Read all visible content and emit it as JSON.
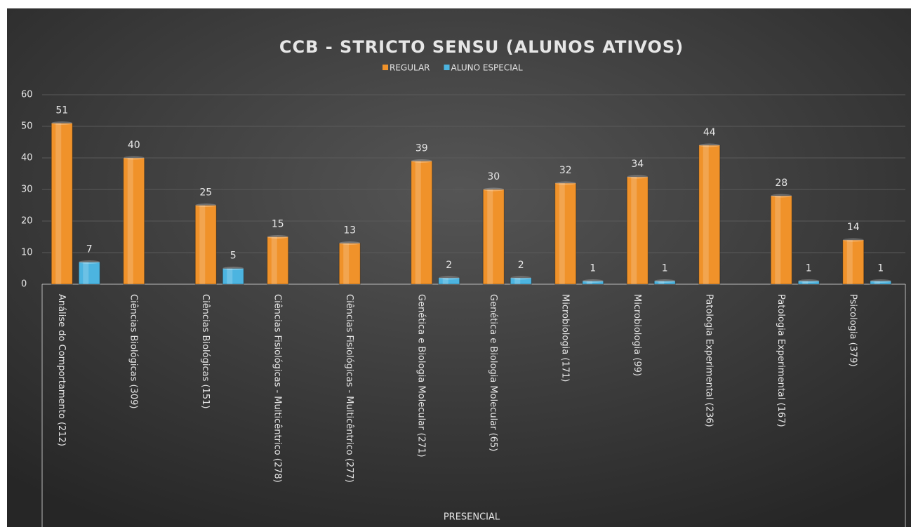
{
  "chart_data": {
    "type": "bar",
    "title": "CCB - STRICTO SENSU (ALUNOS ATIVOS)",
    "group_label": "PRESENCIAL",
    "categories": [
      "Análise do Comportamento (212)",
      "Ciências Biológicas (309)",
      "Ciências Biológicas (151)",
      "Ciências Fisiológicas - Multicêntrico (278)",
      "Ciências Fisiológicas - Multicêntrico (277)",
      "Genética e Biologia Molecular (271)",
      "Genética e Biologia Molecular (65)",
      "Microbiologia (171)",
      "Microbiologia (99)",
      "Patologia Experimental (236)",
      "Patologia Experimental (167)",
      "Psicologia (379)"
    ],
    "series": [
      {
        "name": "REGULAR",
        "color": "#f0922a",
        "values": [
          51,
          40,
          25,
          15,
          13,
          39,
          30,
          32,
          34,
          44,
          28,
          14
        ]
      },
      {
        "name": "ALUNO ESPECIAL",
        "color": "#4cb4e0",
        "values": [
          7,
          null,
          5,
          null,
          null,
          2,
          2,
          1,
          1,
          null,
          1,
          1
        ]
      }
    ],
    "ylim": [
      0,
      60
    ],
    "yticks": [
      0,
      10,
      20,
      30,
      40,
      50,
      60
    ],
    "grid": true
  }
}
